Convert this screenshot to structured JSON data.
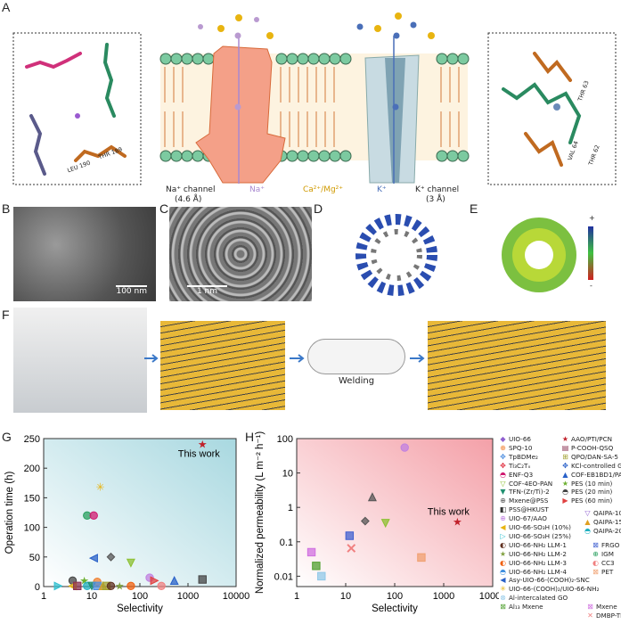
{
  "panels": {
    "A": "A",
    "B": "B",
    "C": "C",
    "D": "D",
    "E": "E",
    "F": "F",
    "G": "G",
    "H": "H"
  },
  "panelA": {
    "na_channel": "Na⁺ channel",
    "na_size": "(4.6 Å)",
    "k_channel": "K⁺ channel",
    "k_size": "(3 Å)",
    "na_ion": "Na⁺",
    "ca_mg": "Ca²⁺/Mg²⁺",
    "k_ion": "K⁺",
    "residues_left": [
      "THR 189",
      "LEU 190"
    ],
    "residues_right": [
      "THR 63",
      "VAL 64",
      "THR 62"
    ],
    "colors": {
      "na": "#b99ad0",
      "ca": "#e8b410",
      "k": "#4a6fb8",
      "lipid_head": "#7ccaa0"
    }
  },
  "panelB": {
    "scale": "100 nm"
  },
  "panelC": {
    "scale": "1 nm"
  },
  "panelE": {
    "plus": "+",
    "minus": "-"
  },
  "panelF": {
    "step": "Welding"
  },
  "chart_data": [
    {
      "type": "scatter",
      "panel": "G",
      "xlabel": "Selectivity",
      "ylabel": "Operation time (h)",
      "xscale": "log",
      "xlim": [
        1,
        10000
      ],
      "ylim": [
        0,
        250
      ],
      "xticks": [
        "1",
        "10",
        "100",
        "1000",
        "10000"
      ],
      "yticks": [
        "0",
        "50",
        "100",
        "150",
        "200",
        "250"
      ],
      "annotation": "This work",
      "background": "blue gradient",
      "points": [
        {
          "name": "AAO/PTI/PCN",
          "x": 2000,
          "y": 240,
          "color": "#c0202a",
          "shape": "star"
        },
        {
          "name": "UIO-66-(COOH)2/UIO-66-NH2",
          "x": 15,
          "y": 168,
          "color": "#e8b410",
          "shape": "asterisk"
        },
        {
          "name": "IGM",
          "x": 8,
          "y": 120,
          "color": "#2aa060",
          "shape": "circle"
        },
        {
          "name": "ENF-Q3",
          "x": 11,
          "y": 120,
          "color": "#d01870",
          "shape": "circle"
        },
        {
          "name": "Asy-UIO-66-(COOH)2-SNC",
          "x": 11,
          "y": 48,
          "color": "#2860c8",
          "shape": "tri-left"
        },
        {
          "name": "Mxene@PSS",
          "x": 25,
          "y": 50,
          "color": "#555555",
          "shape": "diamond"
        },
        {
          "name": "COF-4EO-PAN",
          "x": 65,
          "y": 40,
          "color": "#8cc030",
          "shape": "tri-down"
        },
        {
          "name": "UIO-67/AAO",
          "x": 160,
          "y": 15,
          "color": "#c080e0",
          "shape": "circle"
        },
        {
          "name": "PES (60 min)",
          "x": 200,
          "y": 10,
          "color": "#e04040",
          "shape": "tri-right"
        },
        {
          "name": "COF-EB1BD1/PAN",
          "x": 520,
          "y": 10,
          "color": "#2860c8",
          "shape": "tri-up"
        },
        {
          "name": "PSS@HKUST",
          "x": 2000,
          "y": 12,
          "color": "#444444",
          "shape": "square"
        },
        {
          "name": "PES (20 min)",
          "x": 4,
          "y": 10,
          "color": "#444444",
          "shape": "circle"
        },
        {
          "name": "PES (10 min)",
          "x": 7,
          "y": 10,
          "color": "#6cb030",
          "shape": "star"
        },
        {
          "name": "SPQ-10",
          "x": 13,
          "y": 8,
          "color": "#f08030",
          "shape": "circle"
        },
        {
          "name": "UIO-66-SO3H (25%)",
          "x": 2,
          "y": 1,
          "color": "#30c0d0",
          "shape": "tri-right"
        },
        {
          "name": "UIO-66-SO3H (10%)",
          "x": 4,
          "y": 1,
          "color": "#e8b410",
          "shape": "tri-left"
        },
        {
          "name": "P-COOH-QSQ",
          "x": 5,
          "y": 1,
          "color": "#8a3050",
          "shape": "square"
        },
        {
          "name": "QAIPA-20",
          "x": 8,
          "y": 1,
          "color": "#20b0c0",
          "shape": "circle"
        },
        {
          "name": "TFN-(Zr/Ti)-2",
          "x": 10,
          "y": 1,
          "color": "#209070",
          "shape": "tri-down"
        },
        {
          "name": "TpBDMe2",
          "x": 13,
          "y": 1,
          "color": "#5090e0",
          "shape": "square"
        },
        {
          "name": "QAIPA-15",
          "x": 17,
          "y": 1,
          "color": "#e0a020",
          "shape": "tri-up"
        },
        {
          "name": "QPO/DAN-SA-5",
          "x": 20,
          "y": 1,
          "color": "#a0a030",
          "shape": "square"
        },
        {
          "name": "UIO-66-NH2 LLM-1",
          "x": 25,
          "y": 1,
          "color": "#603020",
          "shape": "circle"
        },
        {
          "name": "UIO-66-NH2 LLM-2",
          "x": 38,
          "y": 1,
          "color": "#80a040",
          "shape": "star"
        },
        {
          "name": "UIO-66-NH2 LLM-3",
          "x": 65,
          "y": 1,
          "color": "#f06010",
          "shape": "circle"
        },
        {
          "name": "CC3",
          "x": 280,
          "y": 1,
          "color": "#f08080",
          "shape": "circle"
        }
      ]
    },
    {
      "type": "scatter",
      "panel": "H",
      "xlabel": "Selectivity",
      "ylabel": "Normalized permeability (L m⁻² h⁻¹)",
      "xscale": "log",
      "yscale": "log",
      "xlim": [
        1,
        10000
      ],
      "ylim": [
        0.005,
        100
      ],
      "xticks": [
        "1",
        "10",
        "100",
        "1000",
        "10000"
      ],
      "yticks": [
        "0.01",
        "0.1",
        "1",
        "10",
        "100"
      ],
      "annotation": "This work",
      "background": "red gradient",
      "points": [
        {
          "name": "UIO-67/AAO",
          "x": 160,
          "y": 55,
          "color": "#c080e0",
          "shape": "circle"
        },
        {
          "name": "TpBDMe2",
          "x": 35,
          "y": 2,
          "color": "#555555",
          "shape": "tri-up"
        },
        {
          "name": "Mxene@PSS",
          "x": 25,
          "y": 0.4,
          "color": "#555555",
          "shape": "diamond"
        },
        {
          "name": "COF-4EO-PAN",
          "x": 65,
          "y": 0.35,
          "color": "#8cc030",
          "shape": "tri-down"
        },
        {
          "name": "FRGO",
          "x": 12,
          "y": 0.15,
          "color": "#4060d0",
          "shape": "square"
        },
        {
          "name": "DMBP-TB",
          "x": 13,
          "y": 0.065,
          "color": "#f08080",
          "shape": "cross"
        },
        {
          "name": "PET",
          "x": 350,
          "y": 0.035,
          "color": "#f0a070",
          "shape": "square"
        },
        {
          "name": "Mxene",
          "x": 2,
          "y": 0.05,
          "color": "#d070e0",
          "shape": "square"
        },
        {
          "name": "Al13 Mxene",
          "x": 2.5,
          "y": 0.02,
          "color": "#50a030",
          "shape": "square"
        },
        {
          "name": "Al-intercalated GO",
          "x": 3.2,
          "y": 0.01,
          "color": "#90c8e8",
          "shape": "square"
        },
        {
          "name": "AAO/PTI/PCN",
          "x": 1900,
          "y": 0.38,
          "color": "#c0202a",
          "shape": "star"
        }
      ]
    }
  ],
  "legend": {
    "col1": [
      {
        "label": "UIO-66",
        "glyph": "◆",
        "color": "#9060d0"
      },
      {
        "label": "SPQ-10",
        "glyph": "⊕",
        "color": "#f08030"
      },
      {
        "label": "TpBDMe₂",
        "glyph": "✥",
        "color": "#5090e0"
      },
      {
        "label": "Ti₃C₂Tₓ",
        "glyph": "✥",
        "color": "#e03040"
      },
      {
        "label": "ENF-Q3",
        "glyph": "◓",
        "color": "#d01870"
      },
      {
        "label": "COF-4EO-PAN",
        "glyph": "▽",
        "color": "#8cc030"
      },
      {
        "label": "TFN-(Zr/Ti)-2",
        "glyph": "▼",
        "color": "#209070"
      },
      {
        "label": "Mxene@PSS",
        "glyph": "⊕",
        "color": "#555555"
      },
      {
        "label": "PSS@HKUST",
        "glyph": "◧",
        "color": "#333333"
      },
      {
        "label": "UIO-67/AAO",
        "glyph": "⊕",
        "color": "#c080e0"
      },
      {
        "label": "UIO-66-SO₃H (10%)",
        "glyph": "◀",
        "color": "#e8b410"
      },
      {
        "label": "UIO-66-SO₃H (25%)",
        "glyph": "▷",
        "color": "#30c0d0"
      },
      {
        "label": "UIO-66-NH₂ LLM-1",
        "glyph": "◐",
        "color": "#603020"
      },
      {
        "label": "UIO-66-NH₂ LLM-2",
        "glyph": "★",
        "color": "#80a040"
      },
      {
        "label": "UIO-66-NH₂ LLM-3",
        "glyph": "◐",
        "color": "#f06010"
      },
      {
        "label": "UIO-66-NH₂ LLM-4",
        "glyph": "◓",
        "color": "#4090e0"
      },
      {
        "label": "Asy-UIO-66-(COOH)₂-SNC",
        "glyph": "◀",
        "color": "#2860c8"
      },
      {
        "label": "UIO-66-(COOH)₂/UIO-66-NH₂",
        "glyph": "✳",
        "color": "#e8b410"
      },
      {
        "label": "Al-intercalated GO",
        "glyph": "⊗",
        "color": "#90c8e8"
      },
      {
        "label": "Al₁₃ Mxene",
        "glyph": "⊠",
        "color": "#50a030"
      }
    ],
    "col2": [
      {
        "label": "AAO/PTI/PCN",
        "glyph": "★",
        "color": "#c0202a"
      },
      {
        "label": "P-COOH-QSQ",
        "glyph": "▤",
        "color": "#8a3050"
      },
      {
        "label": "QPO/DAN-SA-5",
        "glyph": "⊞",
        "color": "#a0a030"
      },
      {
        "label": "KCl-controlled GO",
        "glyph": "✥",
        "color": "#2860c8"
      },
      {
        "label": "COF-EB1BD1/PAN",
        "glyph": "▲",
        "color": "#2860c8"
      },
      {
        "label": "PES (10 min)",
        "glyph": "★",
        "color": "#6cb030"
      },
      {
        "label": "PES (20 min)",
        "glyph": "◓",
        "color": "#444444"
      },
      {
        "label": "PES (60 min)",
        "glyph": "▶",
        "color": "#e04040"
      },
      {
        "label": "QAIPA-10",
        "glyph": "▽",
        "color": "#9060d0"
      },
      {
        "label": "QAIPA-15",
        "glyph": "▲",
        "color": "#e0a020"
      },
      {
        "label": "QAIPA-20",
        "glyph": "◓",
        "color": "#20b0c0"
      },
      {
        "label": "FRGO",
        "glyph": "⊠",
        "color": "#4060d0"
      },
      {
        "label": "IGM",
        "glyph": "⊕",
        "color": "#2aa060"
      },
      {
        "label": "CC3",
        "glyph": "◐",
        "color": "#f08080"
      },
      {
        "label": "PET",
        "glyph": "⊠",
        "color": "#f0a070"
      },
      {
        "label": "Mxene",
        "glyph": "⊠",
        "color": "#d070e0"
      },
      {
        "label": "DMBP-TB",
        "glyph": "✕",
        "color": "#f08080"
      }
    ]
  }
}
